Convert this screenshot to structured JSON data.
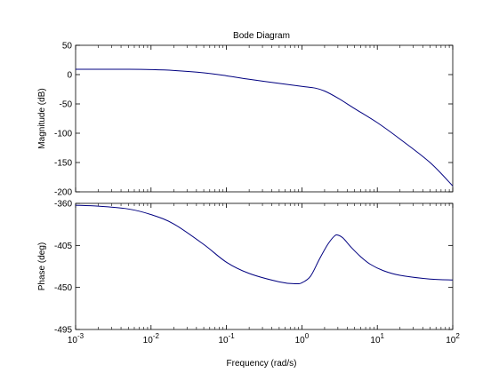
{
  "chart_data": {
    "type": "line",
    "title": "Bode Diagram",
    "xlabel": "Frequency  (rad/s)",
    "x_scale": "log",
    "x_tick_labels": [
      {
        "base": "10",
        "exp": "-3"
      },
      {
        "base": "10",
        "exp": "-2"
      },
      {
        "base": "10",
        "exp": "-1"
      },
      {
        "base": "10",
        "exp": "0"
      },
      {
        "base": "10",
        "exp": "1"
      },
      {
        "base": "10",
        "exp": "2"
      }
    ],
    "xlim": [
      0.001,
      100
    ],
    "line_color": "#000080",
    "grid": false,
    "panels": [
      {
        "ylabel": "Magnitude (dB)",
        "ylim": [
          -200,
          50
        ],
        "yticks": [
          50,
          0,
          -50,
          -100,
          -150,
          -200
        ],
        "ytick_labels": [
          "50",
          "0",
          "-50",
          "-100",
          "-150",
          "-200"
        ],
        "series": [
          {
            "x": [
              0.001,
              0.002,
              0.005,
              0.01,
              0.02,
              0.05,
              0.1,
              0.2,
              0.5,
              1,
              1.5,
              2,
              3,
              5,
              10,
              20,
              50,
              100
            ],
            "y": [
              9,
              9,
              9,
              8.5,
              7,
              3,
              -2,
              -8,
              -15,
              -20,
              -23,
              -28,
              -40,
              -58,
              -82,
              -110,
              -150,
              -190
            ]
          }
        ]
      },
      {
        "ylabel": "Phase (deg)",
        "ylim": [
          -495,
          -360
        ],
        "yticks": [
          -360,
          -405,
          -450,
          -495
        ],
        "ytick_labels": [
          "-360",
          "-405",
          "-450",
          "-495"
        ],
        "series": [
          {
            "x": [
              0.001,
              0.002,
              0.005,
              0.01,
              0.02,
              0.05,
              0.1,
              0.2,
              0.5,
              0.8,
              1,
              1.3,
              1.7,
              2.2,
              2.7,
              3,
              3.5,
              4.5,
              6,
              8,
              12,
              20,
              50,
              100
            ],
            "y": [
              -362,
              -363,
              -366,
              -372,
              -382,
              -404,
              -423,
              -435,
              -444,
              -446,
              -445,
              -438,
              -420,
              -404,
              -395,
              -394,
              -397,
              -407,
              -417,
              -425,
              -432,
              -437,
              -441,
              -442
            ]
          }
        ]
      }
    ]
  }
}
